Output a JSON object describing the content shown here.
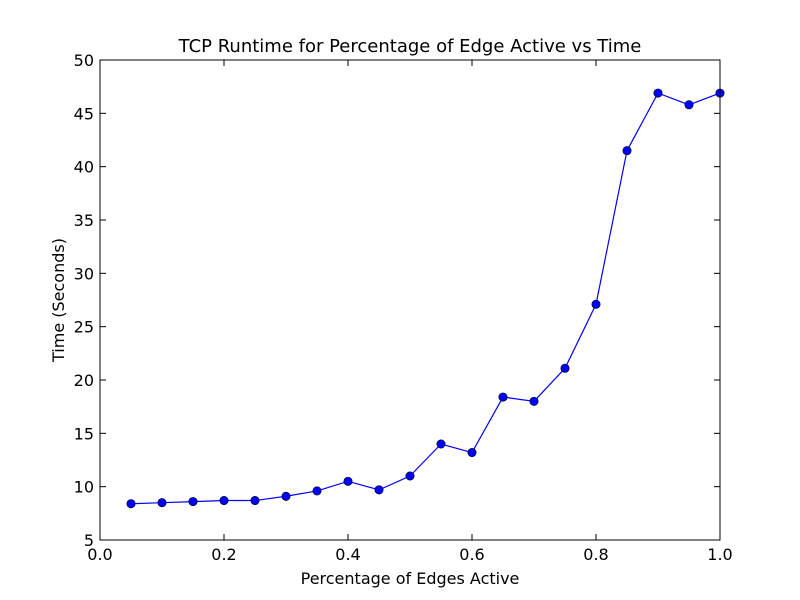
{
  "chart_data": {
    "type": "line",
    "title": "TCP Runtime for Percentage of Edge Active vs Time",
    "xlabel": "Percentage of Edges Active",
    "ylabel": "Time (Seconds)",
    "xlim": [
      0.0,
      1.0
    ],
    "ylim": [
      5,
      50
    ],
    "x_ticks": [
      "0.0",
      "0.2",
      "0.4",
      "0.6",
      "0.8",
      "1.0"
    ],
    "y_ticks": [
      "5",
      "10",
      "15",
      "20",
      "25",
      "30",
      "35",
      "40",
      "45",
      "50"
    ],
    "grid": false,
    "legend": "none",
    "series": [
      {
        "color": "#0000ff",
        "marker": "circle",
        "x": [
          0.05,
          0.1,
          0.15,
          0.2,
          0.25,
          0.3,
          0.35,
          0.4,
          0.45,
          0.5,
          0.55,
          0.6,
          0.65,
          0.7,
          0.75,
          0.8,
          0.85,
          0.9,
          0.95,
          1.0
        ],
        "y": [
          8.4,
          8.5,
          8.6,
          8.7,
          8.7,
          9.1,
          9.6,
          10.5,
          9.7,
          11.0,
          14.0,
          13.2,
          18.4,
          18.0,
          21.1,
          27.1,
          41.5,
          46.9,
          45.8,
          46.9
        ]
      }
    ]
  }
}
